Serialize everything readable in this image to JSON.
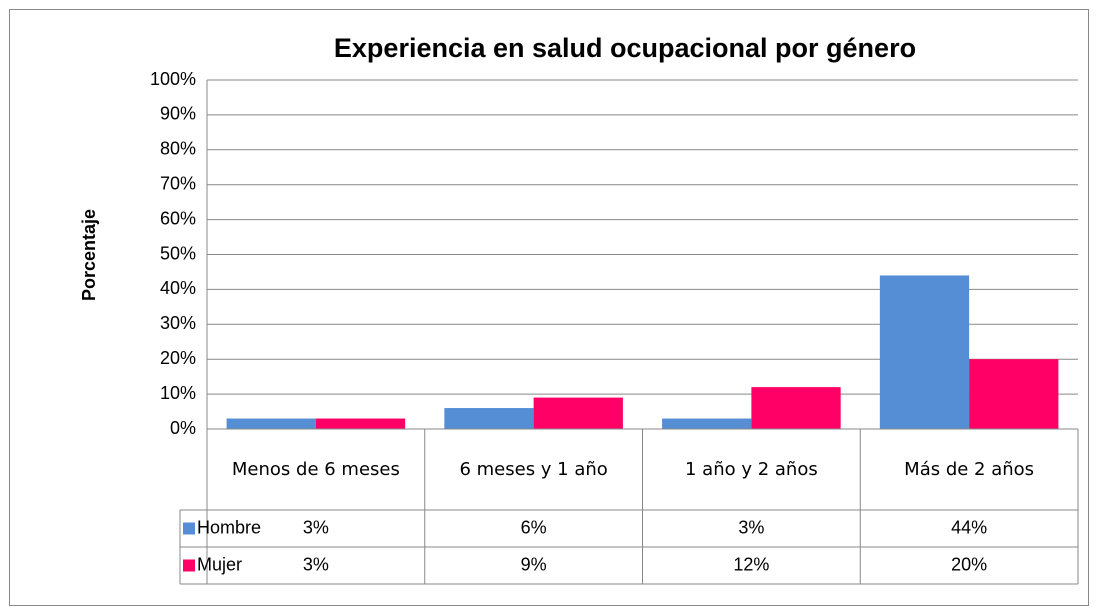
{
  "chart_data": {
    "type": "bar",
    "title": "Experiencia  en salud ocupacional por género",
    "y_axis_label": "Porcentaje",
    "categories": [
      "Menos de 6 meses",
      "6 meses y 1 año",
      "1 año y 2 años",
      "Más de 2 años"
    ],
    "series": [
      {
        "name": "Hombre",
        "color": "#558ed5",
        "values": [
          3,
          6,
          3,
          44
        ],
        "value_labels": [
          "3%",
          "6%",
          "3%",
          "44%"
        ]
      },
      {
        "name": "Mujer",
        "color": "#ff0066",
        "values": [
          3,
          9,
          12,
          20
        ],
        "value_labels": [
          "3%",
          "9%",
          "12%",
          "20%"
        ]
      }
    ],
    "ylim": [
      0,
      100
    ],
    "yticks": [
      {
        "value": 0,
        "label": "0%"
      },
      {
        "value": 10,
        "label": "10%"
      },
      {
        "value": 20,
        "label": "20%"
      },
      {
        "value": 30,
        "label": "30%"
      },
      {
        "value": 40,
        "label": "40%"
      },
      {
        "value": 50,
        "label": "50%"
      },
      {
        "value": 60,
        "label": "60%"
      },
      {
        "value": 70,
        "label": "70%"
      },
      {
        "value": 80,
        "label": "80%"
      },
      {
        "value": 90,
        "label": "90%"
      },
      {
        "value": 100,
        "label": "100%"
      }
    ],
    "grid": true
  }
}
